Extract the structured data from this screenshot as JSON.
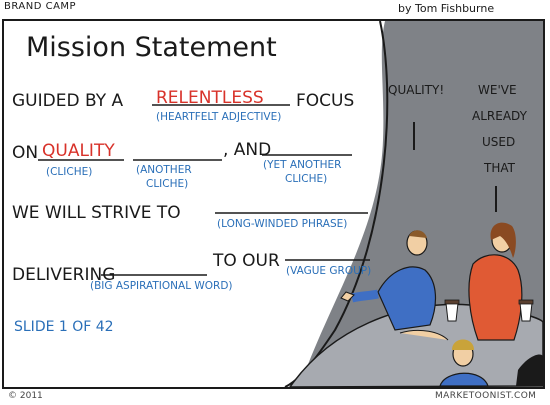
{
  "header": {
    "series": "BRAND CAMP",
    "byline": "by Tom Fishburne"
  },
  "slide": {
    "title": "Mission Statement",
    "line1_start": "GUIDED BY A",
    "line1_fill": "RELENTLESS",
    "line1_end": "FOCUS",
    "line1_hint": "(HEARTFELT ADJECTIVE)",
    "line2_start": "ON",
    "line2_fill": "QUALITY",
    "line2_and": ", AND",
    "line2_hint1": "(CLICHE)",
    "line2_hint2a": "(ANOTHER",
    "line2_hint2b": "CLICHE)",
    "line2_hint3a": "(YET ANOTHER",
    "line2_hint3b": "CLICHE)",
    "line3_start": "WE WILL STRIVE TO",
    "line3_hint": "(LONG-WINDED PHRASE)",
    "line4_start": "DELIVERING",
    "line4_mid": "TO OUR",
    "line4_hint1": "(BIG ASPIRATIONAL WORD)",
    "line4_hint2": "(VAGUE GROUP)",
    "counter": "SLIDE 1 OF 42"
  },
  "speech": {
    "left": "QUALITY!",
    "right_1": "WE'VE",
    "right_2": "ALREADY",
    "right_3": "USED",
    "right_4": "THAT"
  },
  "footer": {
    "copyright": "© 2011",
    "site": "MARKETOONIST.COM"
  },
  "colors": {
    "ink": "#1a1a1a",
    "blue": "#2a6fb8",
    "red": "#d8322a",
    "room": "#8d8f93",
    "table": "#9a9da3"
  }
}
